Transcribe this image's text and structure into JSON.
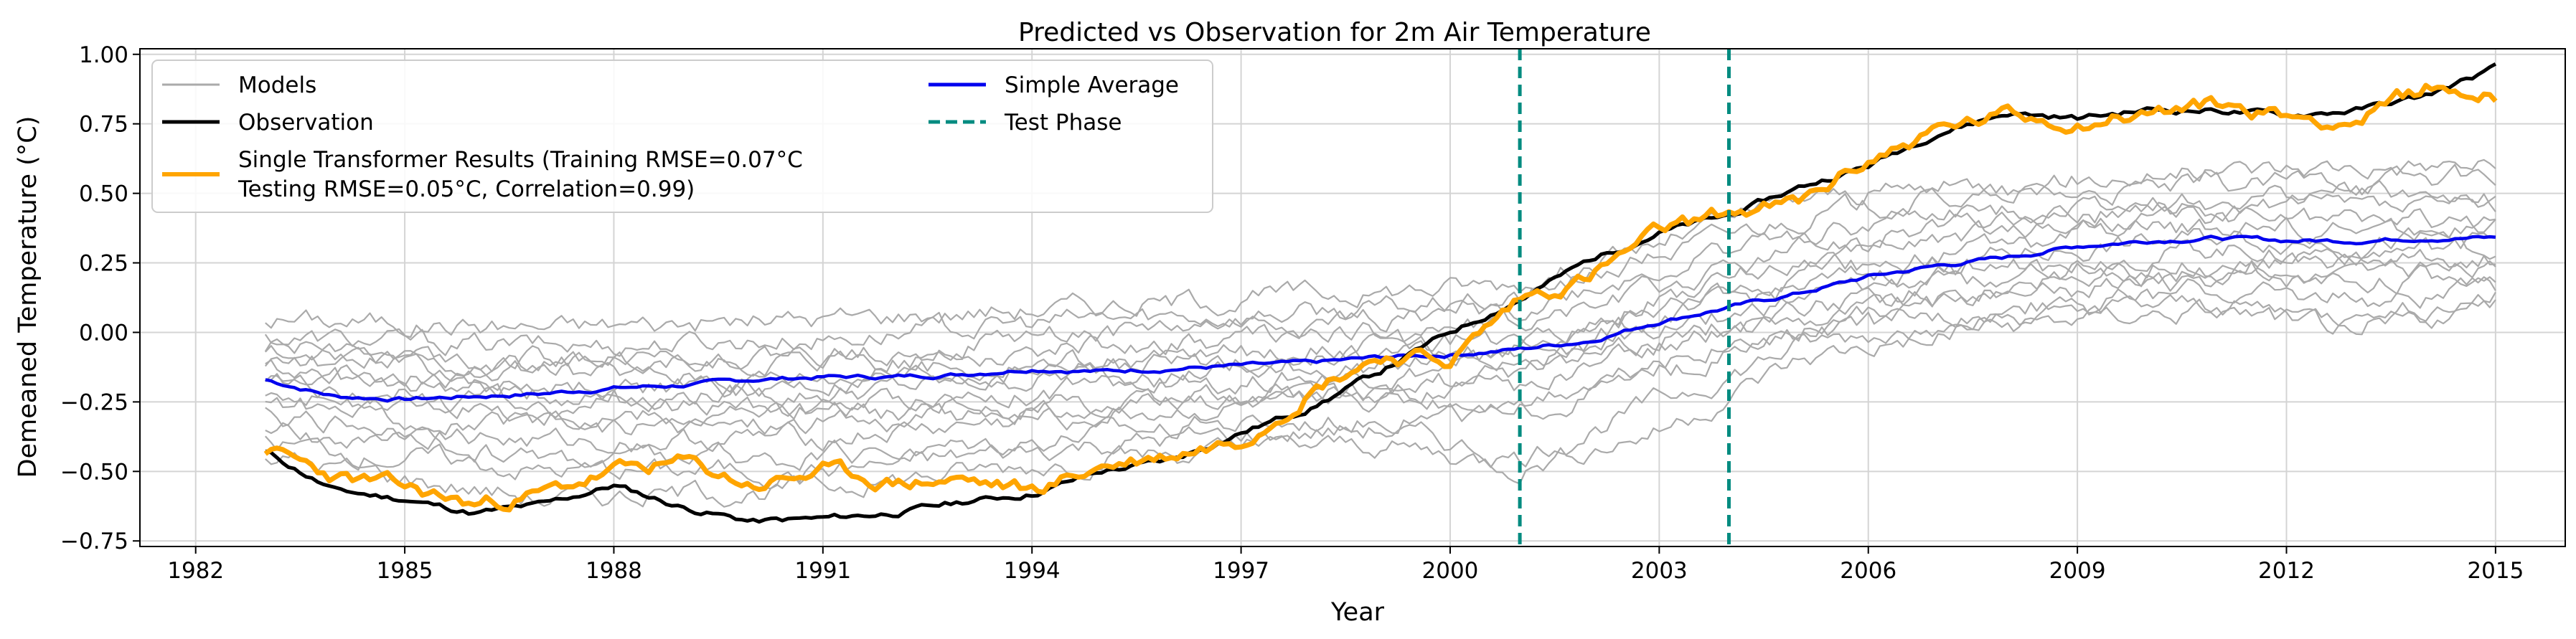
{
  "chart_data": {
    "type": "line",
    "title": "Predicted vs Observation for 2m Air Temperature",
    "xlabel": "Year",
    "ylabel": "Demeaned Temperature (°C)",
    "xlim": [
      1981.2,
      2016.0
    ],
    "ylim": [
      -0.77,
      1.02
    ],
    "xticks": [
      1982,
      1985,
      1988,
      1991,
      1994,
      1997,
      2000,
      2003,
      2006,
      2009,
      2012,
      2015
    ],
    "xtick_labels": [
      "1982",
      "1985",
      "1988",
      "1991",
      "1994",
      "1997",
      "2000",
      "2003",
      "2006",
      "2009",
      "2012",
      "2015"
    ],
    "yticks": [
      -0.75,
      -0.5,
      -0.25,
      0.0,
      0.25,
      0.5,
      0.75,
      1.0
    ],
    "ytick_labels": [
      "−0.75",
      "−0.50",
      "−0.25",
      "0.00",
      "0.25",
      "0.50",
      "0.75",
      "1.00"
    ],
    "grid": true,
    "test_phase_lines": [
      2001.0,
      2004.0
    ],
    "legend": {
      "placement": "top-left",
      "entries": [
        {
          "key": "models",
          "label": "Models",
          "color": "#aaaaaa",
          "style": "solid"
        },
        {
          "key": "observation",
          "label": "Observation",
          "color": "#000000",
          "style": "solid"
        },
        {
          "key": "transformer",
          "label": "Single Transformer Results (Training RMSE=0.07°C",
          "label_line2": "Testing RMSE=0.05°C, Correlation=0.99)",
          "color": "#ffa500",
          "style": "solid"
        },
        {
          "key": "simple_average",
          "label": "Simple Average",
          "color": "#0000ee",
          "style": "solid"
        },
        {
          "key": "test_phase",
          "label": "Test Phase",
          "color": "#008b80",
          "style": "dashed"
        }
      ]
    },
    "series": [
      {
        "name": "Observation",
        "color": "#000000",
        "x": [
          1983,
          1984,
          1985,
          1986,
          1987,
          1988,
          1989,
          1990,
          1991,
          1992,
          1993,
          1994,
          1995,
          1996,
          1997,
          1998,
          1999,
          2000,
          2001,
          2002,
          2003,
          2004,
          2005,
          2006,
          2007,
          2008,
          2009,
          2010,
          2011,
          2012,
          2013,
          2014,
          2015
        ],
        "y": [
          -0.43,
          -0.57,
          -0.6,
          -0.65,
          -0.62,
          -0.55,
          -0.63,
          -0.68,
          -0.67,
          -0.65,
          -0.61,
          -0.58,
          -0.5,
          -0.46,
          -0.36,
          -0.27,
          -0.14,
          0.0,
          0.12,
          0.26,
          0.36,
          0.42,
          0.52,
          0.6,
          0.72,
          0.79,
          0.77,
          0.8,
          0.8,
          0.78,
          0.8,
          0.85,
          0.95
        ]
      },
      {
        "name": "Single Transformer Results",
        "color": "#ffa500",
        "x": [
          1983,
          1984,
          1985,
          1986,
          1987,
          1988,
          1989,
          1990,
          1991,
          1992,
          1993,
          1994,
          1995,
          1996,
          1997,
          1998,
          1999,
          2000,
          2001,
          2002,
          2003,
          2004,
          2005,
          2006,
          2007,
          2008,
          2009,
          2010,
          2011,
          2012,
          2013,
          2014,
          2015
        ],
        "y": [
          -0.42,
          -0.52,
          -0.56,
          -0.62,
          -0.58,
          -0.5,
          -0.47,
          -0.55,
          -0.5,
          -0.54,
          -0.53,
          -0.57,
          -0.48,
          -0.44,
          -0.38,
          -0.2,
          -0.08,
          -0.1,
          0.12,
          0.2,
          0.36,
          0.43,
          0.46,
          0.62,
          0.73,
          0.78,
          0.76,
          0.79,
          0.82,
          0.78,
          0.76,
          0.88,
          0.85
        ]
      },
      {
        "name": "Simple Average",
        "color": "#0000ee",
        "x": [
          1983,
          1984,
          1985,
          1986,
          1987,
          1988,
          1989,
          1990,
          1991,
          1992,
          1993,
          1994,
          1995,
          1996,
          1997,
          1998,
          1999,
          2000,
          2001,
          2002,
          2003,
          2004,
          2005,
          2006,
          2007,
          2008,
          2009,
          2010,
          2011,
          2012,
          2013,
          2014,
          2015
        ],
        "y": [
          -0.17,
          -0.23,
          -0.24,
          -0.23,
          -0.22,
          -0.2,
          -0.19,
          -0.17,
          -0.16,
          -0.16,
          -0.15,
          -0.13,
          -0.14,
          -0.13,
          -0.12,
          -0.11,
          -0.09,
          -0.08,
          -0.06,
          -0.03,
          0.04,
          0.09,
          0.14,
          0.2,
          0.24,
          0.27,
          0.31,
          0.33,
          0.34,
          0.33,
          0.33,
          0.34,
          0.34
        ]
      }
    ],
    "models": {
      "label": "Models",
      "color": "#aaaaaa",
      "x": [
        1983,
        1987,
        1991,
        1995,
        1999,
        2001,
        2003,
        2005,
        2007,
        2009,
        2011,
        2013,
        2015
      ],
      "series": [
        [
          0.05,
          0.02,
          0.05,
          0.1,
          0.15,
          0.18,
          0.32,
          0.48,
          0.52,
          0.55,
          0.58,
          0.6,
          0.6
        ],
        [
          -0.02,
          -0.05,
          -0.02,
          0.05,
          0.08,
          0.12,
          0.28,
          0.42,
          0.48,
          0.5,
          0.52,
          0.55,
          0.56
        ],
        [
          -0.05,
          -0.1,
          -0.08,
          0.0,
          0.05,
          0.08,
          0.22,
          0.36,
          0.42,
          0.46,
          0.47,
          0.5,
          0.47
        ],
        [
          -0.08,
          -0.12,
          -0.12,
          -0.05,
          0.0,
          0.03,
          0.16,
          0.3,
          0.38,
          0.42,
          0.45,
          0.44,
          0.44
        ],
        [
          -0.1,
          -0.15,
          -0.15,
          -0.1,
          -0.05,
          -0.02,
          0.12,
          0.25,
          0.33,
          0.38,
          0.42,
          0.4,
          0.4
        ],
        [
          -0.12,
          -0.2,
          -0.2,
          -0.12,
          -0.08,
          -0.05,
          0.08,
          0.2,
          0.28,
          0.34,
          0.38,
          0.36,
          0.37
        ],
        [
          -0.15,
          -0.22,
          -0.22,
          -0.15,
          -0.12,
          -0.08,
          0.05,
          0.16,
          0.25,
          0.3,
          0.34,
          0.33,
          0.33
        ],
        [
          -0.18,
          -0.26,
          -0.26,
          -0.2,
          -0.15,
          -0.12,
          0.02,
          0.12,
          0.2,
          0.27,
          0.3,
          0.3,
          0.3
        ],
        [
          -0.2,
          -0.3,
          -0.3,
          -0.25,
          -0.2,
          -0.15,
          -0.02,
          0.08,
          0.16,
          0.23,
          0.26,
          0.26,
          0.27
        ],
        [
          -0.25,
          -0.35,
          -0.32,
          -0.28,
          -0.22,
          -0.2,
          -0.05,
          0.05,
          0.13,
          0.2,
          0.22,
          0.22,
          0.23
        ],
        [
          -0.3,
          -0.4,
          -0.38,
          -0.3,
          -0.25,
          -0.25,
          -0.1,
          0.02,
          0.1,
          0.16,
          0.18,
          0.18,
          0.2
        ],
        [
          -0.35,
          -0.45,
          -0.45,
          -0.35,
          -0.3,
          -0.3,
          -0.15,
          -0.02,
          0.06,
          0.12,
          0.15,
          0.12,
          0.15
        ],
        [
          -0.4,
          -0.5,
          -0.5,
          -0.4,
          -0.35,
          -0.45,
          -0.25,
          -0.05,
          0.03,
          0.08,
          0.1,
          0.05,
          0.13
        ],
        [
          -0.45,
          -0.6,
          -0.56,
          -0.45,
          -0.4,
          -0.48,
          -0.35,
          -0.1,
          0.0,
          0.05,
          0.08,
          0.0,
          0.1
        ]
      ]
    }
  }
}
